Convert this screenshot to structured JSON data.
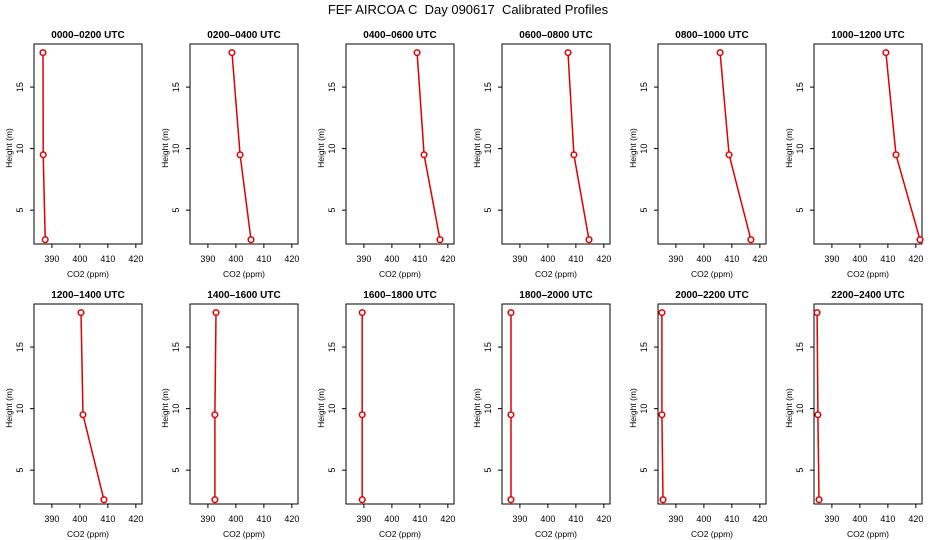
{
  "title": "FEF AIRCOA C  Day 090617  Calibrated Profiles",
  "colors": {
    "profile": "#e00000",
    "axis": "#000000",
    "background": "#ffffff"
  },
  "chart_data": [
    {
      "type": "line",
      "title": "0000–0200 UTC",
      "xlabel": "CO2 (ppm)",
      "ylabel": "Height (m)",
      "xlim": [
        383.6,
        422.2
      ],
      "ylim": [
        2.25,
        18.5
      ],
      "xticks": [
        390,
        400,
        410,
        420
      ],
      "yticks": [
        5,
        10,
        15
      ],
      "series": [
        {
          "x": [
            386.8,
            386.9,
            387.6
          ],
          "y": [
            17.8,
            9.5,
            2.6
          ]
        }
      ]
    },
    {
      "type": "line",
      "title": "0200–0400 UTC",
      "xlabel": "CO2 (ppm)",
      "ylabel": "Height (m)",
      "xlim": [
        383.6,
        422.2
      ],
      "ylim": [
        2.25,
        18.5
      ],
      "xticks": [
        390,
        400,
        410,
        420
      ],
      "yticks": [
        5,
        10,
        15
      ],
      "series": [
        {
          "x": [
            398.6,
            401.5,
            405.4
          ],
          "y": [
            17.8,
            9.5,
            2.6
          ]
        }
      ]
    },
    {
      "type": "line",
      "title": "0400–0600 UTC",
      "xlabel": "CO2 (ppm)",
      "ylabel": "Height (m)",
      "xlim": [
        383.6,
        422.2
      ],
      "ylim": [
        2.25,
        18.5
      ],
      "xticks": [
        390,
        400,
        410,
        420
      ],
      "yticks": [
        5,
        10,
        15
      ],
      "series": [
        {
          "x": [
            409.0,
            411.5,
            417.2
          ],
          "y": [
            17.8,
            9.5,
            2.6
          ]
        }
      ]
    },
    {
      "type": "line",
      "title": "0600–0800 UTC",
      "xlabel": "CO2 (ppm)",
      "ylabel": "Height (m)",
      "xlim": [
        383.6,
        422.2
      ],
      "ylim": [
        2.25,
        18.5
      ],
      "xticks": [
        390,
        400,
        410,
        420
      ],
      "yticks": [
        5,
        10,
        15
      ],
      "series": [
        {
          "x": [
            407.2,
            409.3,
            414.7
          ],
          "y": [
            17.8,
            9.5,
            2.6
          ]
        }
      ]
    },
    {
      "type": "line",
      "title": "0800–1000 UTC",
      "xlabel": "CO2 (ppm)",
      "ylabel": "Height (m)",
      "xlim": [
        383.6,
        422.2
      ],
      "ylim": [
        2.25,
        18.5
      ],
      "xticks": [
        390,
        400,
        410,
        420
      ],
      "yticks": [
        5,
        10,
        15
      ],
      "series": [
        {
          "x": [
            405.8,
            409.0,
            416.8
          ],
          "y": [
            17.8,
            9.5,
            2.6
          ]
        }
      ]
    },
    {
      "type": "line",
      "title": "1000–1200 UTC",
      "xlabel": "CO2 (ppm)",
      "ylabel": "Height (m)",
      "xlim": [
        383.6,
        422.2
      ],
      "ylim": [
        2.25,
        18.5
      ],
      "xticks": [
        390,
        400,
        410,
        420
      ],
      "yticks": [
        5,
        10,
        15
      ],
      "series": [
        {
          "x": [
            409.3,
            412.9,
            421.5
          ],
          "y": [
            17.8,
            9.5,
            2.6
          ]
        }
      ]
    },
    {
      "type": "line",
      "title": "1200–1400 UTC",
      "xlabel": "CO2 (ppm)",
      "ylabel": "Height (m)",
      "xlim": [
        383.6,
        422.2
      ],
      "ylim": [
        2.25,
        18.5
      ],
      "xticks": [
        390,
        400,
        410,
        420
      ],
      "yticks": [
        5,
        10,
        15
      ],
      "series": [
        {
          "x": [
            400.4,
            401.1,
            408.6
          ],
          "y": [
            17.8,
            9.5,
            2.6
          ]
        }
      ]
    },
    {
      "type": "line",
      "title": "1400–1600 UTC",
      "xlabel": "CO2 (ppm)",
      "ylabel": "Height (m)",
      "xlim": [
        383.6,
        422.2
      ],
      "ylim": [
        2.25,
        18.5
      ],
      "xticks": [
        390,
        400,
        410,
        420
      ],
      "yticks": [
        5,
        10,
        15
      ],
      "series": [
        {
          "x": [
            392.9,
            392.5,
            392.5
          ],
          "y": [
            17.8,
            9.5,
            2.6
          ]
        }
      ]
    },
    {
      "type": "line",
      "title": "1600–1800 UTC",
      "xlabel": "CO2 (ppm)",
      "ylabel": "Height (m)",
      "xlim": [
        383.6,
        422.2
      ],
      "ylim": [
        2.25,
        18.5
      ],
      "xticks": [
        390,
        400,
        410,
        420
      ],
      "yticks": [
        5,
        10,
        15
      ],
      "series": [
        {
          "x": [
            389.4,
            389.4,
            389.4
          ],
          "y": [
            17.8,
            9.5,
            2.6
          ]
        }
      ]
    },
    {
      "type": "line",
      "title": "1800–2000 UTC",
      "xlabel": "CO2 (ppm)",
      "ylabel": "Height (m)",
      "xlim": [
        383.6,
        422.2
      ],
      "ylim": [
        2.25,
        18.5
      ],
      "xticks": [
        390,
        400,
        410,
        420
      ],
      "yticks": [
        5,
        10,
        15
      ],
      "series": [
        {
          "x": [
            386.8,
            386.8,
            386.8
          ],
          "y": [
            17.8,
            9.5,
            2.6
          ]
        }
      ]
    },
    {
      "type": "line",
      "title": "2000–2200 UTC",
      "xlabel": "CO2 (ppm)",
      "ylabel": "Height (m)",
      "xlim": [
        383.6,
        422.2
      ],
      "ylim": [
        2.25,
        18.5
      ],
      "xticks": [
        390,
        400,
        410,
        420
      ],
      "yticks": [
        5,
        10,
        15
      ],
      "series": [
        {
          "x": [
            385.0,
            385.0,
            385.4
          ],
          "y": [
            17.8,
            9.5,
            2.6
          ]
        }
      ]
    },
    {
      "type": "line",
      "title": "2200–2400 UTC",
      "xlabel": "CO2 (ppm)",
      "ylabel": "Height (m)",
      "xlim": [
        383.6,
        422.2
      ],
      "ylim": [
        2.25,
        18.5
      ],
      "xticks": [
        390,
        400,
        410,
        420
      ],
      "yticks": [
        5,
        10,
        15
      ],
      "series": [
        {
          "x": [
            384.7,
            385.0,
            385.4
          ],
          "y": [
            17.8,
            9.5,
            2.6
          ]
        }
      ]
    }
  ]
}
